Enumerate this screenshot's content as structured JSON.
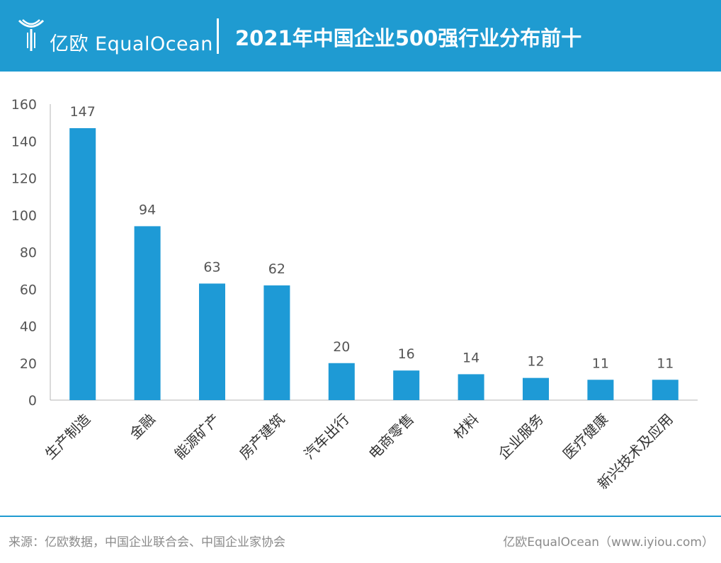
{
  "header": {
    "brand": "亿欧 EqualOcean",
    "logo_icon": "equalocean-logo-icon",
    "title": "2021年中国企业500强行业分布前十"
  },
  "colors": {
    "accent": "#1f9bd1",
    "bar": "#1e9ad6",
    "axis_text": "#555555"
  },
  "chart_data": {
    "type": "bar",
    "title": "2021年中国企业500强行业分布前十",
    "xlabel": "",
    "ylabel": "",
    "ylim": [
      0,
      160
    ],
    "yticks": [
      0,
      20,
      40,
      60,
      80,
      100,
      120,
      140,
      160
    ],
    "grid": false,
    "categories": [
      "生产制造",
      "金融",
      "能源矿产",
      "房产建筑",
      "汽车出行",
      "电商零售",
      "材料",
      "企业服务",
      "医疗健康",
      "新兴技术及应用"
    ],
    "values": [
      147,
      94,
      63,
      62,
      20,
      16,
      14,
      12,
      11,
      11
    ]
  },
  "footer": {
    "source": "来源：亿欧数据，中国企业联合会、中国企业家协会",
    "brand": "亿欧EqualOcean（www.iyiou.com）"
  }
}
